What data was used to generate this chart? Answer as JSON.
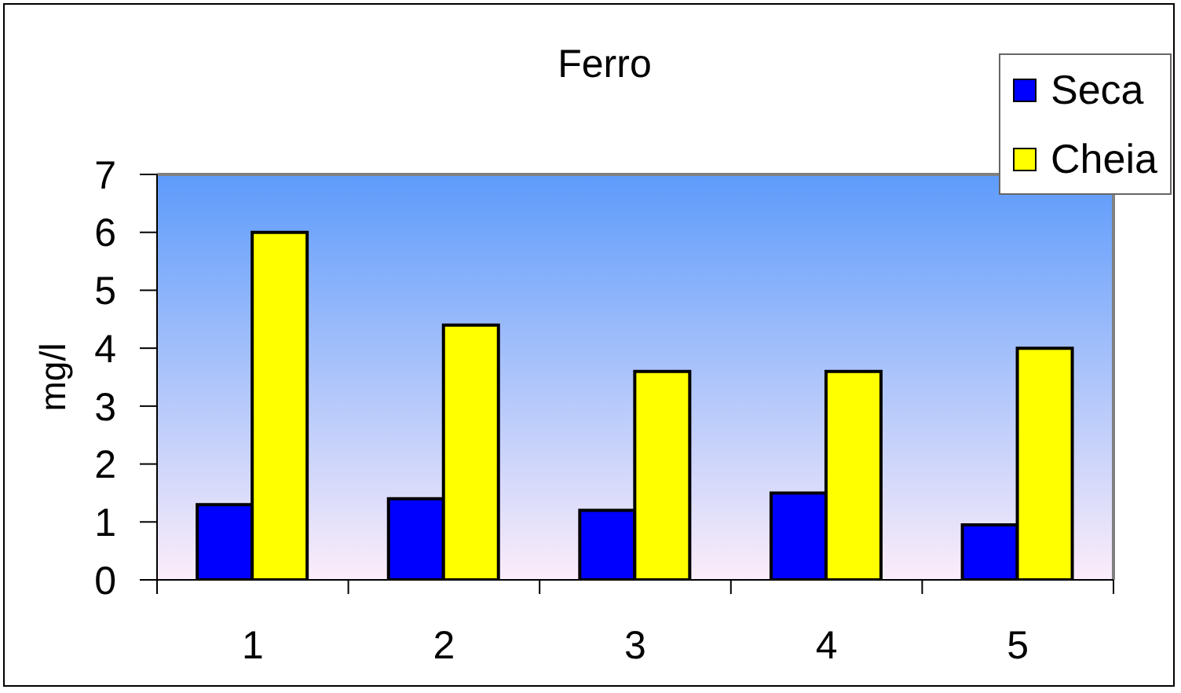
{
  "chart_data": {
    "type": "bar",
    "title": "Ferro",
    "ylabel": "mg/l",
    "categories": [
      "1",
      "2",
      "3",
      "4",
      "5"
    ],
    "series": [
      {
        "name": "Seca",
        "color": "#0000ff",
        "values": [
          1.3,
          1.4,
          1.2,
          1.5,
          0.95
        ]
      },
      {
        "name": "Cheia",
        "color": "#ffff00",
        "values": [
          6.0,
          4.4,
          3.6,
          3.6,
          4.0
        ]
      }
    ],
    "ylim": [
      0,
      7
    ],
    "yticks": [
      0,
      1,
      2,
      3,
      4,
      5,
      6,
      7
    ],
    "legend": "top right"
  }
}
